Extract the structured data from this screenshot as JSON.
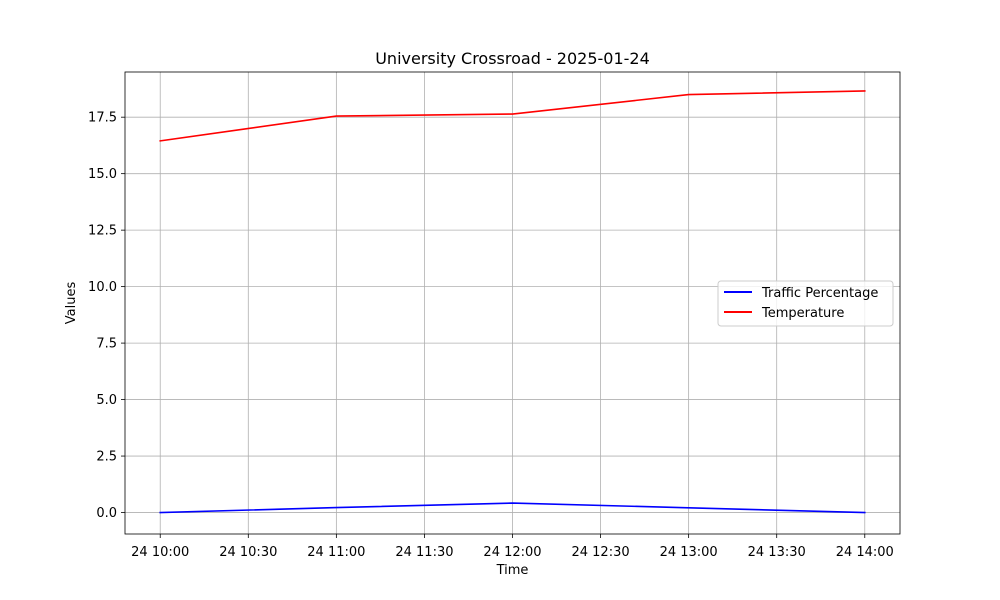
{
  "colors": {
    "traffic": "#0000ff",
    "temperature": "#ff0000",
    "grid": "#b0b0b0",
    "legend_border": "#cccccc"
  },
  "chart_data": {
    "type": "line",
    "title": "University Crossroad - 2025-01-24",
    "xlabel": "Time",
    "ylabel": "Values",
    "x": [
      "2025-01-24 10:00",
      "2025-01-24 11:00",
      "2025-01-24 12:00",
      "2025-01-24 13:00",
      "2025-01-24 14:00"
    ],
    "x_ticks": [
      {
        "time": "2025-01-24 10:00",
        "label": "24 10:00"
      },
      {
        "time": "2025-01-24 10:30",
        "label": "24 10:30"
      },
      {
        "time": "2025-01-24 11:00",
        "label": "24 11:00"
      },
      {
        "time": "2025-01-24 11:30",
        "label": "24 11:30"
      },
      {
        "time": "2025-01-24 12:00",
        "label": "24 12:00"
      },
      {
        "time": "2025-01-24 12:30",
        "label": "24 12:30"
      },
      {
        "time": "2025-01-24 13:00",
        "label": "24 13:00"
      },
      {
        "time": "2025-01-24 13:30",
        "label": "24 13:30"
      },
      {
        "time": "2025-01-24 14:00",
        "label": "24 14:00"
      }
    ],
    "xlim": [
      "2025-01-24 09:48",
      "2025-01-24 14:12"
    ],
    "y_ticks": [
      {
        "value": 0,
        "label": "0.0"
      },
      {
        "value": 2.5,
        "label": "2.5"
      },
      {
        "value": 5,
        "label": "5.0"
      },
      {
        "value": 7.5,
        "label": "7.5"
      },
      {
        "value": 10,
        "label": "10.0"
      },
      {
        "value": 12.5,
        "label": "12.5"
      },
      {
        "value": 15,
        "label": "15.0"
      },
      {
        "value": 17.5,
        "label": "17.5"
      }
    ],
    "ylim": [
      -0.95,
      19.5
    ],
    "grid": true,
    "legend_position": "center-right",
    "series": [
      {
        "name": "Traffic Percentage",
        "color": "#0000ff",
        "values": [
          0.0,
          0.22,
          0.42,
          0.21,
          0.0
        ]
      },
      {
        "name": "Temperature",
        "color": "#ff0000",
        "values": [
          16.45,
          17.55,
          17.64,
          18.5,
          18.66
        ]
      }
    ]
  }
}
